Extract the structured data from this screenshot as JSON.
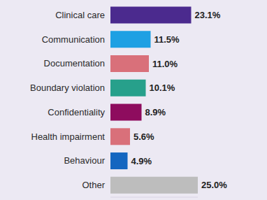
{
  "chart_data": {
    "type": "bar",
    "orientation": "horizontal",
    "categories": [
      "Clinical care",
      "Communication",
      "Documentation",
      "Boundary violation",
      "Confidentiality",
      "Health impairment",
      "Behaviour",
      "Other"
    ],
    "values": [
      23.1,
      11.5,
      11.0,
      10.1,
      8.9,
      5.6,
      4.9,
      25.0
    ],
    "value_labels": [
      "23.1%",
      "11.5%",
      "11.0%",
      "10.1%",
      "8.9%",
      "5.6%",
      "4.9%",
      "25.0%"
    ],
    "colors": [
      "#4b2a8e",
      "#1ea0e3",
      "#d9707a",
      "#27a08b",
      "#8e0c5e",
      "#d9707a",
      "#1466c0",
      "#bdbdbd"
    ],
    "xlim": [
      0,
      25
    ],
    "xticks": [
      0,
      25
    ],
    "tick_labels": "y",
    "data_labels": true,
    "grid": false
  }
}
